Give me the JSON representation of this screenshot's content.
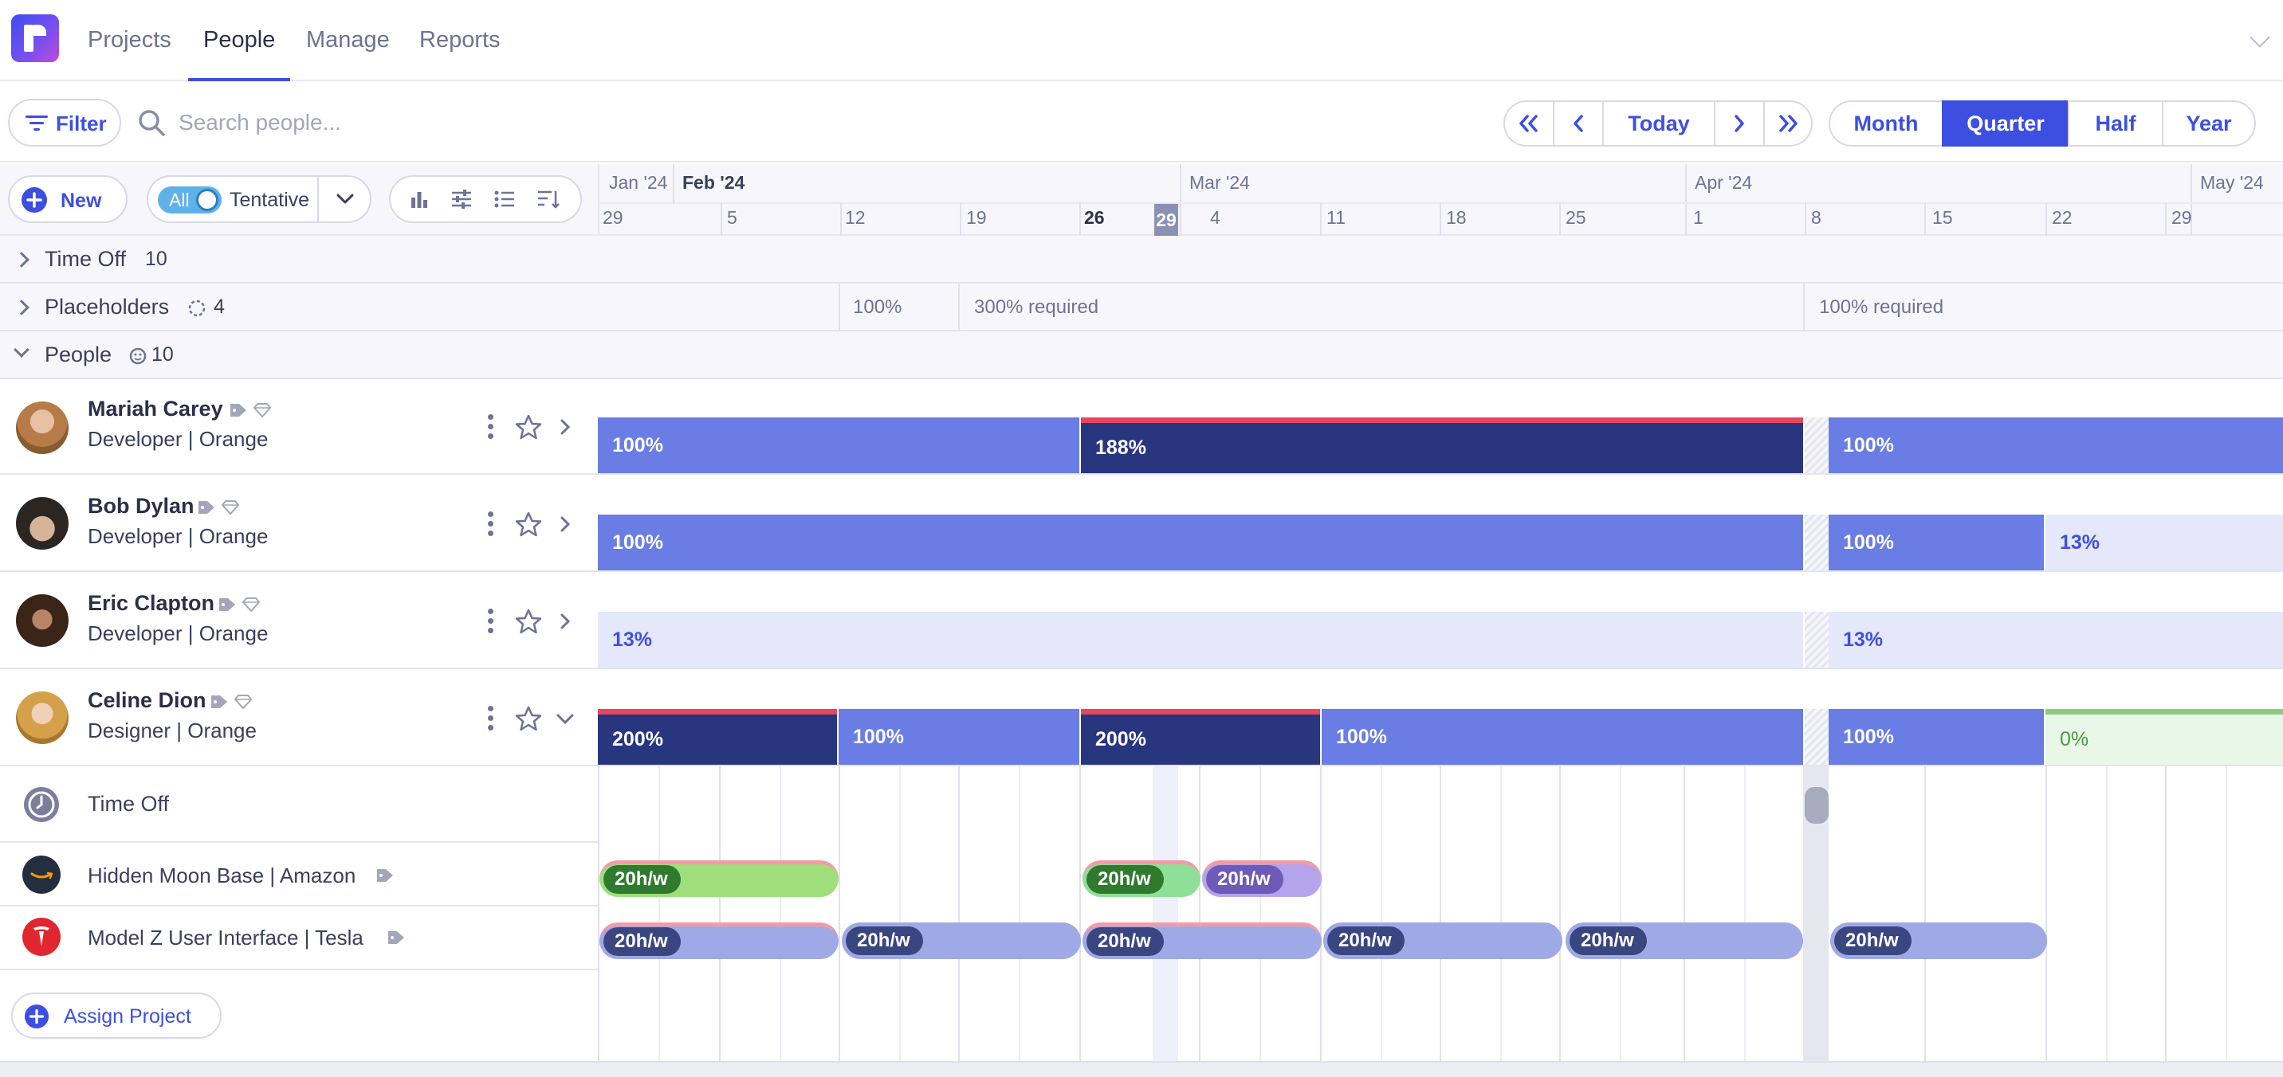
{
  "nav": {
    "tabs": [
      "Projects",
      "People",
      "Manage",
      "Reports"
    ],
    "active": "People"
  },
  "toolbar": {
    "filter_label": "Filter",
    "search_placeholder": "Search people...",
    "today_label": "Today",
    "views": [
      "Month",
      "Quarter",
      "Half",
      "Year"
    ],
    "active_view": "Quarter"
  },
  "controls": {
    "new_label": "New",
    "toggle_all_label": "All",
    "tentative_label": "Tentative"
  },
  "timeline": {
    "months": [
      "Jan '24",
      "Feb '24",
      "Mar '24",
      "Apr '24",
      "May '24"
    ],
    "days": [
      "29",
      "5",
      "12",
      "19",
      "26",
      "29",
      "4",
      "11",
      "18",
      "25",
      "1",
      "8",
      "15",
      "22",
      "29"
    ],
    "today_day": "29"
  },
  "groups": {
    "time_off": {
      "label": "Time Off",
      "count": "10"
    },
    "placeholders": {
      "label": "Placeholders",
      "count": "4",
      "cells": [
        "100%",
        "300% required",
        "100% required"
      ]
    },
    "people": {
      "label": "People",
      "count": "10"
    }
  },
  "people": [
    {
      "name": "Mariah Carey",
      "role": "Developer | Orange",
      "bars": [
        "100%",
        "188%",
        "100%"
      ]
    },
    {
      "name": "Bob Dylan",
      "role": "Developer | Orange",
      "bars": [
        "100%",
        "100%",
        "13%"
      ]
    },
    {
      "name": "Eric Clapton",
      "role": "Developer | Orange",
      "bars": [
        "13%",
        "13%"
      ]
    },
    {
      "name": "Celine Dion",
      "role": "Designer | Orange",
      "bars": [
        "200%",
        "100%",
        "200%",
        "100%",
        "100%",
        "0%"
      ]
    }
  ],
  "detail": {
    "time_off_label": "Time Off",
    "projects": [
      {
        "name": "Hidden Moon Base | Amazon",
        "bars": [
          "20h/w",
          "20h/w",
          "20h/w"
        ]
      },
      {
        "name": "Model Z User Interface | Tesla",
        "bars": [
          "20h/w",
          "20h/w",
          "20h/w",
          "20h/w",
          "20h/w",
          "20h/w"
        ]
      }
    ],
    "assign_label": "Assign Project"
  },
  "colors": {
    "accent": "#3d4fe0",
    "bar_light": "#6a7de4",
    "bar_dark": "#283680",
    "over_alloc": "#e6475e",
    "green": "#9fde7b",
    "purple": "#b5a4ec"
  }
}
